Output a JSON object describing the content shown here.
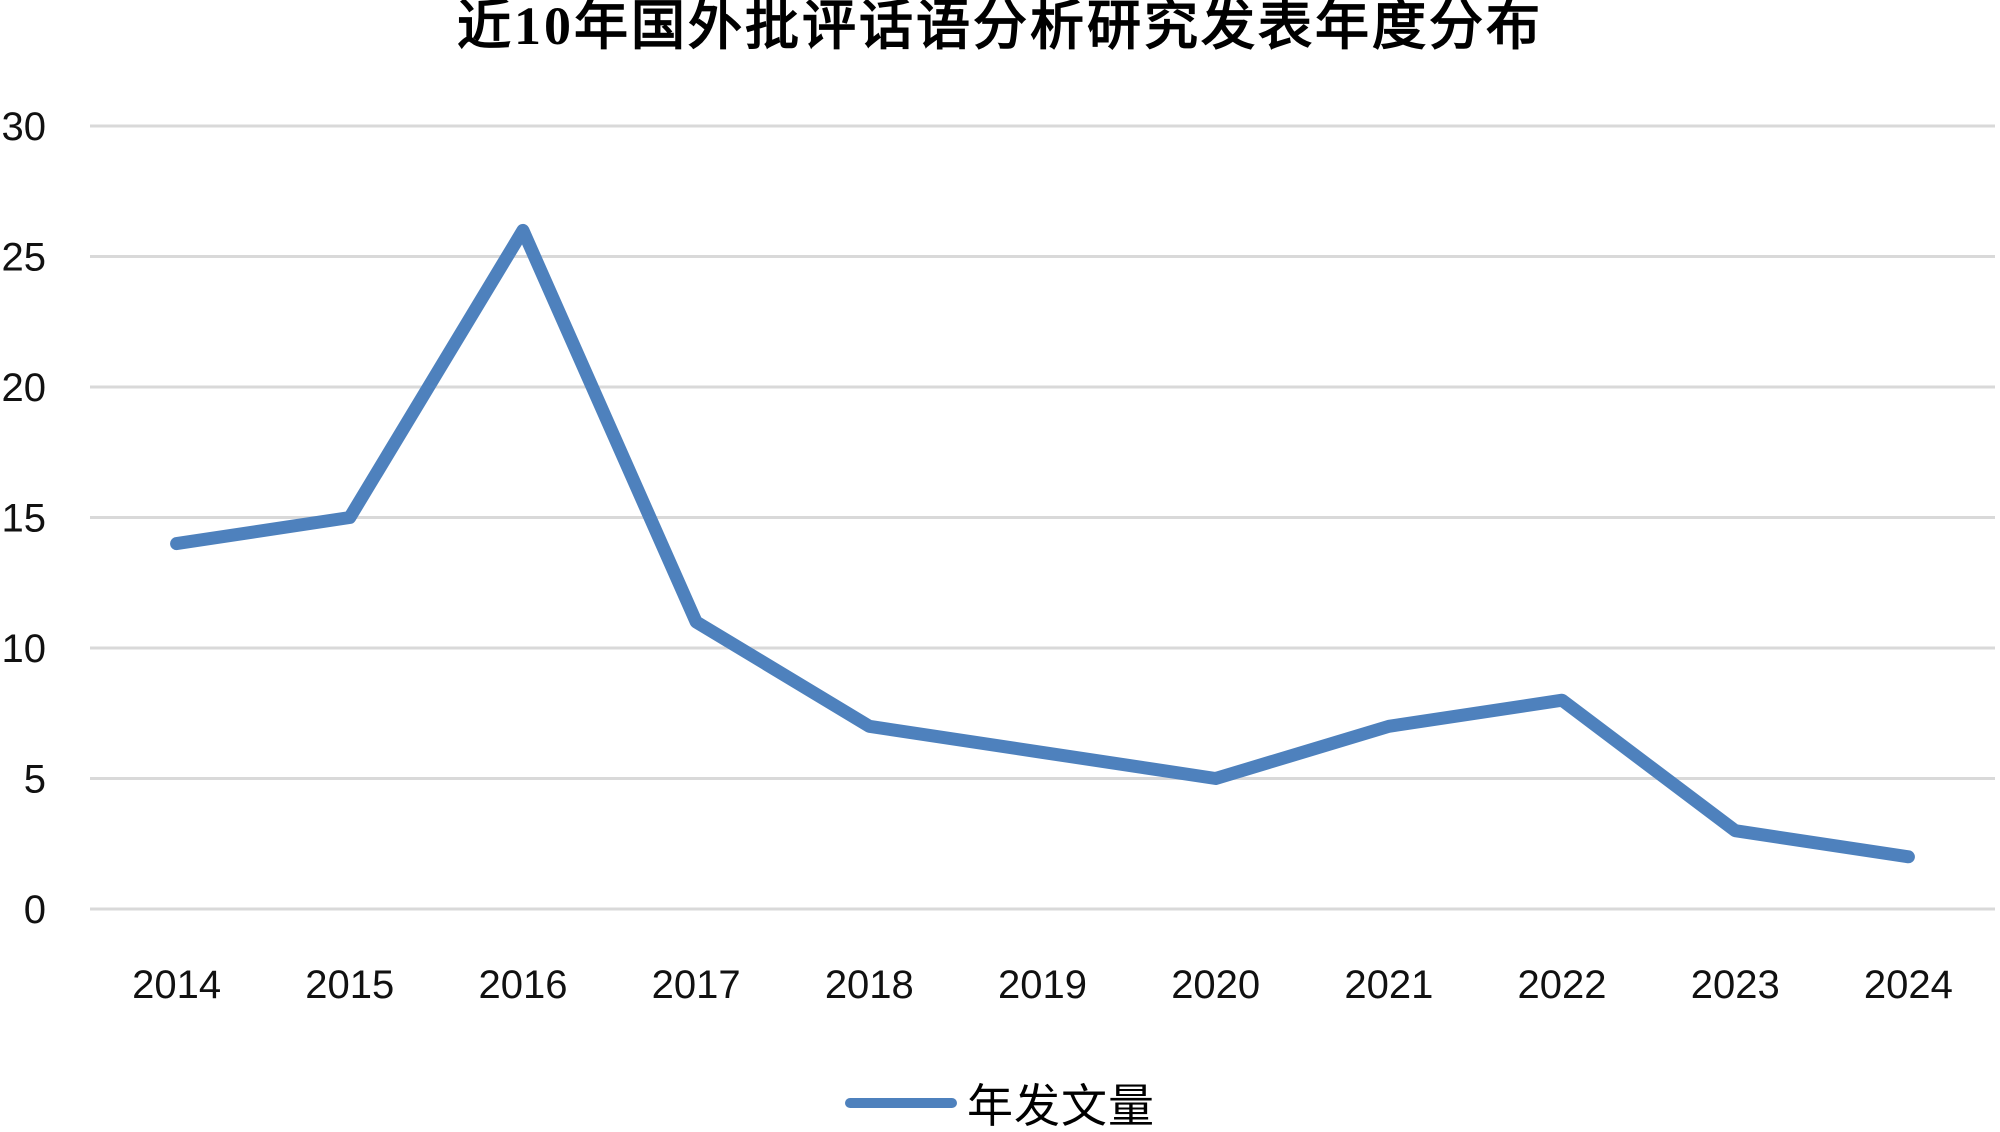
{
  "chart_data": {
    "type": "line",
    "title": "近10年国外批评话语分析研究发表年度分布",
    "categories": [
      "2014",
      "2015",
      "2016",
      "2017",
      "2018",
      "2019",
      "2020",
      "2021",
      "2022",
      "2023",
      "2024"
    ],
    "series": [
      {
        "name": "年发文量",
        "values": [
          14,
          15,
          26,
          11,
          7,
          6,
          5,
          7,
          8,
          3,
          2
        ]
      }
    ],
    "xlabel": "",
    "ylabel": "",
    "ylim": [
      0,
      30
    ],
    "yticks": [
      0,
      5,
      10,
      15,
      20,
      25,
      30
    ],
    "grid": "horizontal",
    "legend_position": "bottom",
    "colors": {
      "line": "#4E81BD",
      "gridline": "#D9D9D9",
      "text": "#111111",
      "background": "#FFFFFF"
    }
  }
}
